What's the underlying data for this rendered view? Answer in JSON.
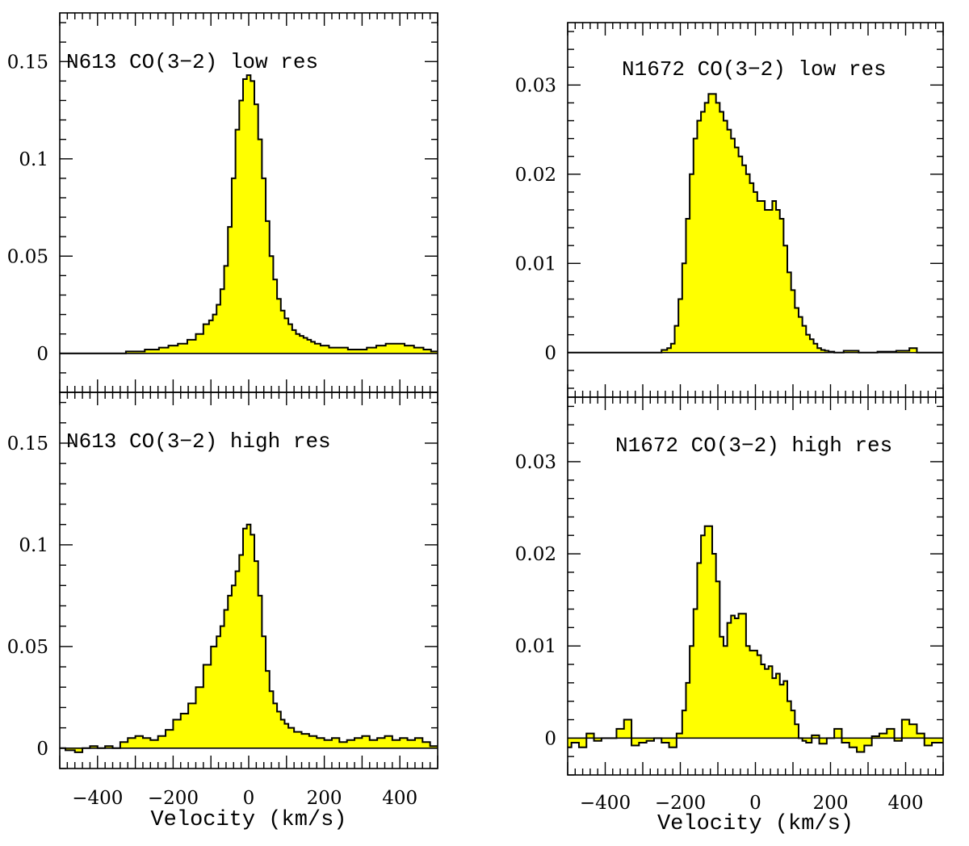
{
  "chart_data": [
    {
      "id": "n613-low",
      "type": "area",
      "style": "histogram",
      "title": "N613 CO(3−2) low res",
      "xlabel": "",
      "ylabel": "",
      "xlim": [
        -500,
        500
      ],
      "ylim": [
        -0.02,
        0.175
      ],
      "yticks": [
        0,
        0.05,
        0.1,
        0.15
      ],
      "ytick_labels": [
        "0",
        "0.05",
        "0.1",
        "0.15"
      ],
      "xticks": [],
      "xtick_labels": [],
      "fill_color": "#ffff00",
      "series": [
        {
          "name": "N613 CO(3-2) low res",
          "x": [
            -500,
            -450,
            -400,
            -350,
            -300,
            -250,
            -225,
            -200,
            -175,
            -150,
            -130,
            -110,
            -100,
            -90,
            -80,
            -70,
            -60,
            -50,
            -40,
            -30,
            -20,
            -10,
            0,
            10,
            20,
            30,
            40,
            50,
            60,
            70,
            80,
            90,
            100,
            110,
            120,
            130,
            140,
            150,
            160,
            170,
            180,
            200,
            225,
            250,
            275,
            300,
            325,
            350,
            375,
            400,
            425,
            450,
            475,
            490
          ],
          "y": [
            0,
            0,
            0,
            0,
            0.001,
            0.002,
            0.003,
            0.004,
            0.005,
            0.007,
            0.01,
            0.015,
            0.017,
            0.02,
            0.025,
            0.033,
            0.045,
            0.065,
            0.09,
            0.115,
            0.13,
            0.141,
            0.143,
            0.14,
            0.128,
            0.11,
            0.09,
            0.068,
            0.05,
            0.038,
            0.028,
            0.022,
            0.018,
            0.015,
            0.012,
            0.01,
            0.009,
            0.008,
            0.007,
            0.006,
            0.005,
            0.004,
            0.003,
            0.003,
            0.002,
            0.002,
            0.003,
            0.004,
            0.005,
            0.005,
            0.004,
            0.003,
            0.002,
            0.001
          ]
        }
      ]
    },
    {
      "id": "n613-high",
      "type": "area",
      "style": "histogram",
      "title": "N613 CO(3−2) high res",
      "xlabel": "Velocity (km/s)",
      "ylabel": "",
      "xlim": [
        -500,
        500
      ],
      "ylim": [
        -0.01,
        0.175
      ],
      "yticks": [
        0,
        0.05,
        0.1,
        0.15
      ],
      "ytick_labels": [
        "0",
        "0.05",
        "0.1",
        "0.15"
      ],
      "xticks": [
        -400,
        -200,
        0,
        200,
        400
      ],
      "xtick_labels": [
        "−400",
        "−200",
        "0",
        "200",
        "400"
      ],
      "fill_color": "#ffff00",
      "series": [
        {
          "name": "N613 CO(3-2) high res",
          "x": [
            -500,
            -470,
            -450,
            -430,
            -410,
            -390,
            -370,
            -350,
            -330,
            -310,
            -290,
            -270,
            -250,
            -230,
            -210,
            -190,
            -170,
            -150,
            -130,
            -110,
            -90,
            -80,
            -70,
            -60,
            -50,
            -40,
            -30,
            -20,
            -10,
            0,
            10,
            20,
            30,
            40,
            50,
            60,
            70,
            80,
            90,
            100,
            110,
            130,
            150,
            170,
            190,
            210,
            230,
            250,
            270,
            290,
            310,
            330,
            350,
            370,
            390,
            410,
            430,
            450,
            470,
            490
          ],
          "y": [
            0,
            -0.001,
            -0.002,
            0,
            0.001,
            0,
            0.001,
            0,
            0.003,
            0.005,
            0.006,
            0.005,
            0.004,
            0.006,
            0.009,
            0.014,
            0.017,
            0.022,
            0.03,
            0.041,
            0.05,
            0.055,
            0.06,
            0.068,
            0.075,
            0.08,
            0.087,
            0.095,
            0.108,
            0.11,
            0.105,
            0.092,
            0.075,
            0.055,
            0.038,
            0.028,
            0.022,
            0.018,
            0.014,
            0.012,
            0.01,
            0.008,
            0.007,
            0.006,
            0.005,
            0.004,
            0.005,
            0.003,
            0.004,
            0.005,
            0.006,
            0.004,
            0.005,
            0.006,
            0.004,
            0.005,
            0.004,
            0.005,
            0.003,
            0.001
          ]
        }
      ]
    },
    {
      "id": "n1672-low",
      "type": "area",
      "style": "histogram",
      "title": "N1672 CO(3−2) low res",
      "xlabel": "",
      "ylabel": "",
      "xlim": [
        -500,
        500
      ],
      "ylim": [
        -0.005,
        0.037
      ],
      "yticks": [
        0,
        0.01,
        0.02,
        0.03
      ],
      "ytick_labels": [
        "0",
        "0.01",
        "0.02",
        "0.03"
      ],
      "xticks": [],
      "xtick_labels": [],
      "fill_color": "#ffff00",
      "series": [
        {
          "name": "N1672 CO(3-2) low res",
          "x": [
            -500,
            -450,
            -400,
            -350,
            -300,
            -260,
            -240,
            -230,
            -220,
            -210,
            -200,
            -190,
            -180,
            -170,
            -160,
            -150,
            -140,
            -130,
            -120,
            -110,
            -100,
            -90,
            -80,
            -70,
            -60,
            -50,
            -40,
            -30,
            -20,
            -10,
            0,
            10,
            20,
            30,
            40,
            50,
            60,
            70,
            80,
            90,
            100,
            110,
            120,
            130,
            140,
            150,
            160,
            170,
            180,
            190,
            200,
            220,
            250,
            300,
            350,
            400,
            420,
            440,
            480
          ],
          "y": [
            0,
            0,
            0,
            0,
            0,
            0,
            0.0003,
            0.0005,
            0.001,
            0.003,
            0.006,
            0.01,
            0.015,
            0.02,
            0.024,
            0.026,
            0.027,
            0.028,
            0.029,
            0.029,
            0.028,
            0.027,
            0.026,
            0.025,
            0.024,
            0.023,
            0.022,
            0.021,
            0.02,
            0.019,
            0.018,
            0.017,
            0.017,
            0.016,
            0.016,
            0.017,
            0.016,
            0.015,
            0.012,
            0.009,
            0.007,
            0.005,
            0.004,
            0.003,
            0.002,
            0.0015,
            0.001,
            0.0005,
            0.0003,
            0.0002,
            0.0001,
            0,
            0.0002,
            0,
            0.0001,
            0.0002,
            0.0005,
            0,
            0
          ]
        }
      ]
    },
    {
      "id": "n1672-high",
      "type": "area",
      "style": "histogram",
      "title": "N1672 CO(3−2) high res",
      "xlabel": "Velocity (km/s)",
      "ylabel": "",
      "xlim": [
        -500,
        500
      ],
      "ylim": [
        -0.004,
        0.037
      ],
      "yticks": [
        0,
        0.01,
        0.02,
        0.03
      ],
      "ytick_labels": [
        "0",
        "0.01",
        "0.02",
        "0.03"
      ],
      "xticks": [
        -400,
        -200,
        0,
        200,
        400
      ],
      "xtick_labels": [
        "−400",
        "−200",
        "0",
        "200",
        "400"
      ],
      "fill_color": "#ffff00",
      "series": [
        {
          "name": "N1672 CO(3-2) high res",
          "x": [
            -500,
            -480,
            -460,
            -440,
            -420,
            -400,
            -380,
            -360,
            -340,
            -320,
            -300,
            -280,
            -260,
            -240,
            -220,
            -200,
            -190,
            -180,
            -170,
            -160,
            -150,
            -140,
            -130,
            -120,
            -110,
            -100,
            -90,
            -80,
            -70,
            -60,
            -50,
            -40,
            -30,
            -20,
            -10,
            0,
            10,
            20,
            30,
            40,
            50,
            60,
            70,
            80,
            90,
            100,
            110,
            120,
            130,
            140,
            160,
            180,
            200,
            220,
            240,
            260,
            280,
            300,
            320,
            340,
            360,
            380,
            400,
            420,
            440,
            460,
            480
          ],
          "y": [
            -0.001,
            -0.0005,
            -0.001,
            0.0005,
            -0.0003,
            0,
            0,
            0.001,
            0.002,
            -0.0008,
            -0.0005,
            -0.0003,
            0,
            -0.0005,
            -0.001,
            0.0005,
            0.003,
            0.006,
            0.01,
            0.014,
            0.019,
            0.022,
            0.023,
            0.023,
            0.02,
            0.017,
            0.011,
            0.01,
            0.0125,
            0.0133,
            0.013,
            0.0135,
            0.0135,
            0.01,
            0.0095,
            0.0095,
            0.009,
            0.008,
            0.0075,
            0.0078,
            0.0065,
            0.007,
            0.0058,
            0.0062,
            0.004,
            0.003,
            0.0015,
            0,
            -0.0003,
            -0.0005,
            0.0003,
            -0.0006,
            0,
            0.001,
            -0.0005,
            -0.001,
            -0.0015,
            -0.0008,
            0.0002,
            0.0005,
            0.001,
            -0.0003,
            0.002,
            0.0015,
            0.0005,
            -0.0008,
            -0.0005
          ]
        }
      ]
    }
  ]
}
